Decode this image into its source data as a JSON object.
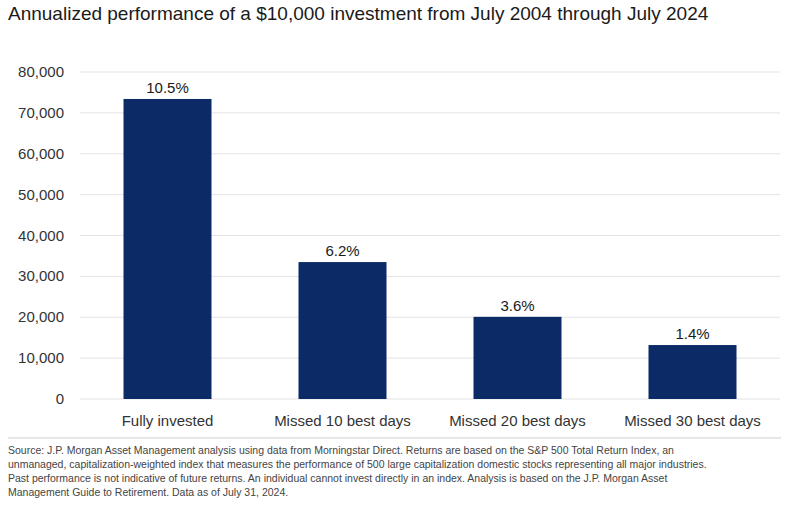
{
  "chart_data": {
    "type": "bar",
    "title": "Annualized performance of a $10,000 investment from July 2004 through July 2024",
    "categories": [
      "Fully invested",
      "Missed 10 best days",
      "Missed 20 best days",
      "Missed 30 best days"
    ],
    "values": [
      73400,
      33500,
      20100,
      13200
    ],
    "annotations": [
      "10.5%",
      "6.2%",
      "3.6%",
      "1.4%"
    ],
    "color": "#0b2a66",
    "ylim": [
      0,
      80000
    ],
    "yticks": [
      0,
      {
        "value": 10000,
        "label": "10,000"
      },
      {
        "value": 20000,
        "label": "20,000"
      },
      {
        "value": 30000,
        "label": "30,000"
      },
      {
        "value": 40000,
        "label": "40,000"
      },
      {
        "value": 50000,
        "label": "50,000"
      },
      {
        "value": 60000,
        "label": "60,000"
      },
      {
        "value": 70000,
        "label": "70,000"
      },
      {
        "value": 80000,
        "label": "80,000"
      }
    ],
    "grid": true,
    "footnote": [
      "Source: J.P. Morgan Asset Management analysis using data from Morningstar Direct. Returns are based on the S&P 500 Total Return Index, an",
      "unmanaged, capitalization-weighted index that measures the performance of 500 large capitalization domestic stocks representing all major industries.",
      "Past performance is not indicative of future returns. An individual cannot invest directly in an index. Analysis is based on the J.P. Morgan Asset",
      "Management Guide to Retirement. Data as of July 31, 2024."
    ]
  }
}
